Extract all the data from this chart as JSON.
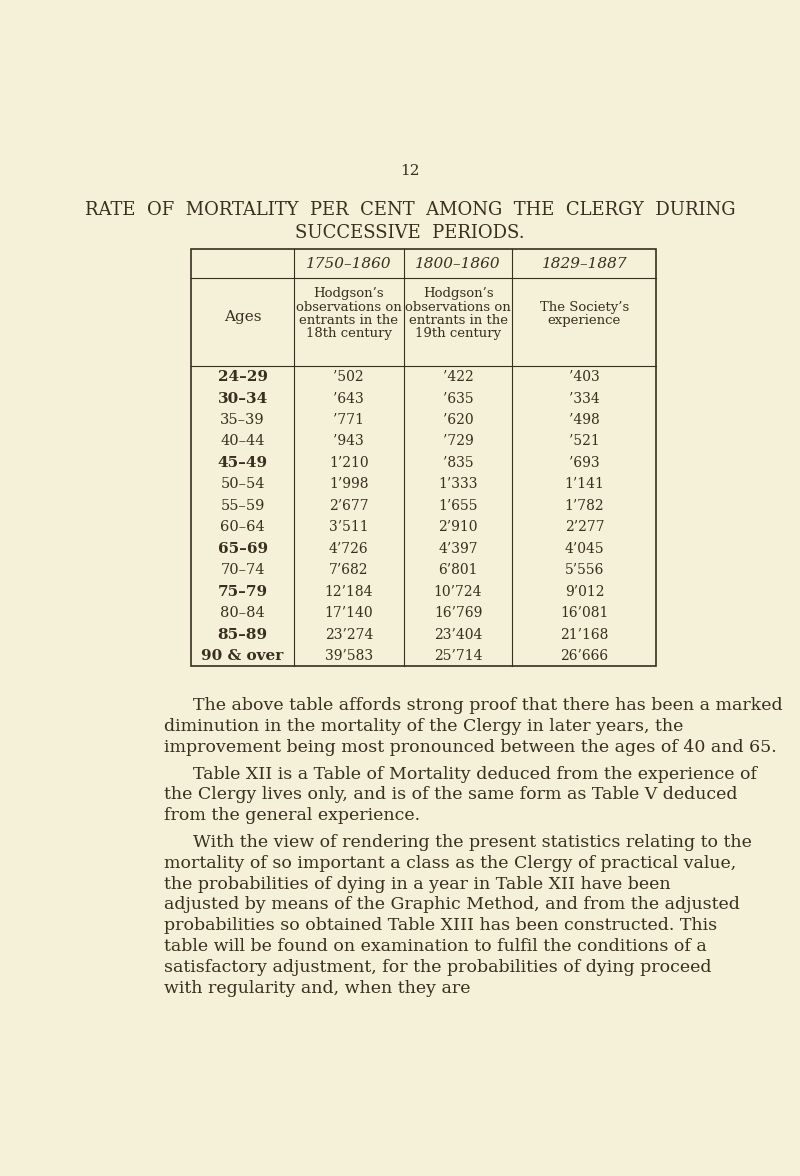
{
  "bg_color": "#f5f0d8",
  "text_color": "#3a2e1e",
  "page_number": "12",
  "title_line1": "RATE  OF  MORTALITY  PER  CENT  AMONG  THE  CLERGY  DURING",
  "title_line2": "SUCCESSIVE  PERIODS.",
  "col_headers": [
    "1750–1860",
    "1800–1860",
    "1829–1887"
  ],
  "col_subheaders": [
    [
      "Hodgson’s",
      "observations on",
      "entrants in the",
      "18th century"
    ],
    [
      "Hodgson’s",
      "observations on",
      "entrants in the",
      "19th century"
    ],
    [
      "The Society’s",
      "experience"
    ]
  ],
  "row_label": "Ages",
  "ages": [
    "24–29",
    "30–34",
    "35–39",
    "40–44",
    "45–49",
    "50–54",
    "55–59",
    "60–64",
    "65–69",
    "70–74",
    "75–79",
    "80–84",
    "85–89",
    "90 & over"
  ],
  "col1": [
    "’502",
    "’643",
    "’771",
    "’943",
    "1’210",
    "1’998",
    "2’677",
    "3’511",
    "4’726",
    "7’682",
    "12’184",
    "17’140",
    "23’274",
    "39’583"
  ],
  "col2": [
    "’422",
    "’635",
    "’620",
    "’729",
    "’835",
    "1’333",
    "1’655",
    "2’910",
    "4’397",
    "6’801",
    "10’724",
    "16’769",
    "23’404",
    "25’714"
  ],
  "col3": [
    "’403",
    "’334",
    "’498",
    "’521",
    "’693",
    "1’141",
    "1’782",
    "2’277",
    "4’045",
    "5’556",
    "9’012",
    "16’081",
    "21’168",
    "26’666"
  ],
  "paragraph1": "The above table affords strong proof that there has been a marked diminution in the mortality of the Clergy in later years, the improvement being most pronounced between the ages of 40 and 65.",
  "paragraph2": "Table XII is a Table of Mortality deduced from the experience of the Clergy lives only, and is of the same form as Table V deduced from the general experience.",
  "paragraph3": "With the view of rendering the present statistics relating to the mortality of so important a class as the Clergy of practical value, the probabilities of dying in a year in Table XII have been adjusted by means of the Graphic Method, and from the adjusted probabilities so obtained Table XIII has been constructed.  This table will be found on examination to fulfil the conditions of a satisfactory adjustment, for the probabilities of dying proceed with regularity and, when they are"
}
